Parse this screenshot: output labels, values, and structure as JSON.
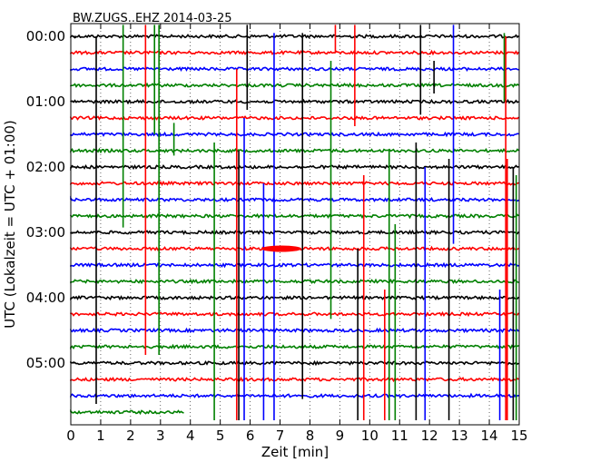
{
  "chart_data": {
    "type": "line",
    "title": "BW.ZUGS..EHZ 2014-03-25",
    "xlabel": "Zeit  [min]",
    "ylabel": "UTC (Lokalzeit = UTC + 01:00)",
    "xlim": [
      0,
      15
    ],
    "x_ticks": [
      "0",
      "1",
      "2",
      "3",
      "4",
      "5",
      "6",
      "7",
      "8",
      "9",
      "10",
      "11",
      "12",
      "13",
      "14",
      "15"
    ],
    "y_ticks": [
      "00:00",
      "01:00",
      "02:00",
      "03:00",
      "04:00",
      "05:00"
    ],
    "grid": "vertical-dotted",
    "trace_interval_minutes": 15,
    "series_colors": [
      "#000000",
      "#ff0000",
      "#0000ff",
      "#008000"
    ],
    "traces": [
      {
        "start": "00:00",
        "color": "#000000",
        "end_min": 15
      },
      {
        "start": "00:15",
        "color": "#ff0000",
        "end_min": 15
      },
      {
        "start": "00:30",
        "color": "#0000ff",
        "end_min": 15
      },
      {
        "start": "00:45",
        "color": "#008000",
        "end_min": 15
      },
      {
        "start": "01:00",
        "color": "#000000",
        "end_min": 15
      },
      {
        "start": "01:15",
        "color": "#ff0000",
        "end_min": 15
      },
      {
        "start": "01:30",
        "color": "#0000ff",
        "end_min": 15
      },
      {
        "start": "01:45",
        "color": "#008000",
        "end_min": 15
      },
      {
        "start": "02:00",
        "color": "#000000",
        "end_min": 15
      },
      {
        "start": "02:15",
        "color": "#ff0000",
        "end_min": 15
      },
      {
        "start": "02:30",
        "color": "#0000ff",
        "end_min": 15
      },
      {
        "start": "02:45",
        "color": "#008000",
        "end_min": 15
      },
      {
        "start": "03:00",
        "color": "#000000",
        "end_min": 15
      },
      {
        "start": "03:15",
        "color": "#ff0000",
        "end_min": 15
      },
      {
        "start": "03:30",
        "color": "#0000ff",
        "end_min": 15
      },
      {
        "start": "03:45",
        "color": "#008000",
        "end_min": 15
      },
      {
        "start": "04:00",
        "color": "#000000",
        "end_min": 15
      },
      {
        "start": "04:15",
        "color": "#ff0000",
        "end_min": 15
      },
      {
        "start": "04:30",
        "color": "#0000ff",
        "end_min": 15
      },
      {
        "start": "04:45",
        "color": "#008000",
        "end_min": 15
      },
      {
        "start": "05:00",
        "color": "#000000",
        "end_min": 15
      },
      {
        "start": "05:15",
        "color": "#ff0000",
        "end_min": 15
      },
      {
        "start": "05:30",
        "color": "#0000ff",
        "end_min": 15
      },
      {
        "start": "05:45",
        "color": "#008000",
        "end_min": 3.8
      }
    ],
    "vertical_events": [
      {
        "min": 0.85,
        "color": "#000000",
        "from": 0,
        "to": 22.5
      },
      {
        "min": 1.75,
        "color": "#008000",
        "from": -0.7,
        "to": 11.7
      },
      {
        "min": 2.5,
        "color": "#ff0000",
        "from": -0.7,
        "to": 19.5
      },
      {
        "min": 2.8,
        "color": "#008000",
        "from": -0.7,
        "to": 6
      },
      {
        "min": 2.95,
        "color": "#008000",
        "from": -0.7,
        "to": 19.5
      },
      {
        "min": 3.45,
        "color": "#008000",
        "from": 5.3,
        "to": 7.3
      },
      {
        "min": 4.8,
        "color": "#008000",
        "from": 6.5,
        "to": 23.5
      },
      {
        "min": 5.55,
        "color": "#ff0000",
        "from": 2,
        "to": 23.5
      },
      {
        "min": 5.62,
        "color": "#000000",
        "from": 7,
        "to": 23.5
      },
      {
        "min": 5.8,
        "color": "#0000ff",
        "from": 5,
        "to": 23.5
      },
      {
        "min": 5.9,
        "color": "#000000",
        "from": -0.7,
        "to": 4.5
      },
      {
        "min": 6.45,
        "color": "#0000ff",
        "from": 9,
        "to": 23.5
      },
      {
        "min": 6.8,
        "color": "#0000ff",
        "from": -0.2,
        "to": 23.5
      },
      {
        "min": 7.75,
        "color": "#000000",
        "from": -0.2,
        "to": 22.2
      },
      {
        "min": 8.7,
        "color": "#008000",
        "from": 1.5,
        "to": 17.3
      },
      {
        "min": 8.85,
        "color": "#ff0000",
        "from": -0.7,
        "to": 1
      },
      {
        "min": 9.5,
        "color": "#ff0000",
        "from": -0.7,
        "to": 5.5
      },
      {
        "min": 9.6,
        "color": "#000000",
        "from": 13,
        "to": 23.5
      },
      {
        "min": 9.8,
        "color": "#ff0000",
        "from": 8.5,
        "to": 23.5
      },
      {
        "min": 10.5,
        "color": "#ff0000",
        "from": 15.5,
        "to": 23.5
      },
      {
        "min": 10.65,
        "color": "#008000",
        "from": 7,
        "to": 23.5
      },
      {
        "min": 10.85,
        "color": "#008000",
        "from": 11.5,
        "to": 23.5
      },
      {
        "min": 11.55,
        "color": "#000000",
        "from": 6.5,
        "to": 23.5
      },
      {
        "min": 11.7,
        "color": "#000000",
        "from": -0.7,
        "to": 4.8
      },
      {
        "min": 11.85,
        "color": "#0000ff",
        "from": 8,
        "to": 23.5
      },
      {
        "min": 12.15,
        "color": "#000000",
        "from": 1.5,
        "to": 3.5
      },
      {
        "min": 12.65,
        "color": "#000000",
        "from": 7.5,
        "to": 23.5
      },
      {
        "min": 12.8,
        "color": "#0000ff",
        "from": -0.7,
        "to": 12.7
      },
      {
        "min": 14.35,
        "color": "#0000ff",
        "from": 15.5,
        "to": 23.5
      },
      {
        "min": 14.5,
        "color": "#008000",
        "from": -0.2,
        "to": 4
      },
      {
        "min": 14.55,
        "color": "#ff0000",
        "from": 0,
        "to": 23.5
      },
      {
        "min": 14.6,
        "color": "#ff0000",
        "from": 7.5,
        "to": 23.5
      },
      {
        "min": 14.8,
        "color": "#000000",
        "from": 8,
        "to": 23.5
      },
      {
        "min": 14.9,
        "color": "#008000",
        "from": 8.5,
        "to": 23.5
      }
    ],
    "local_events": [
      {
        "min": 7.35,
        "trace": 13,
        "color": "#ff0000"
      }
    ]
  }
}
